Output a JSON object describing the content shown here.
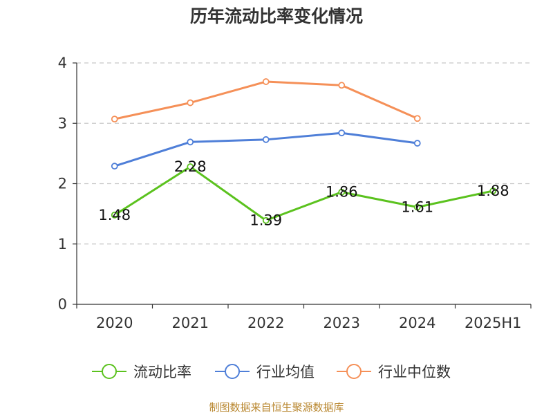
{
  "chart_data": {
    "type": "line",
    "title": "历年流动比率变化情况",
    "categories": [
      "2020",
      "2021",
      "2022",
      "2023",
      "2024",
      "2025H1"
    ],
    "ylim": [
      0,
      4
    ],
    "yticks": [
      "0",
      "1",
      "2",
      "3",
      "4"
    ],
    "grid": true,
    "legend_position": "bottom",
    "series": [
      {
        "name": "流动比率",
        "color": "#5bc21e",
        "values": [
          1.48,
          2.28,
          1.39,
          1.86,
          1.61,
          1.88
        ],
        "labels": [
          "1.48",
          "2.28",
          "1.39",
          "1.86",
          "1.61",
          "1.88"
        ]
      },
      {
        "name": "行业均值",
        "color": "#4f7fd8",
        "values": [
          2.29,
          2.69,
          2.73,
          2.84,
          2.67,
          null
        ]
      },
      {
        "name": "行业中位数",
        "color": "#f59058",
        "values": [
          3.07,
          3.34,
          3.69,
          3.63,
          3.08,
          null
        ]
      }
    ]
  },
  "source": "制图数据来自恒生聚源数据库"
}
